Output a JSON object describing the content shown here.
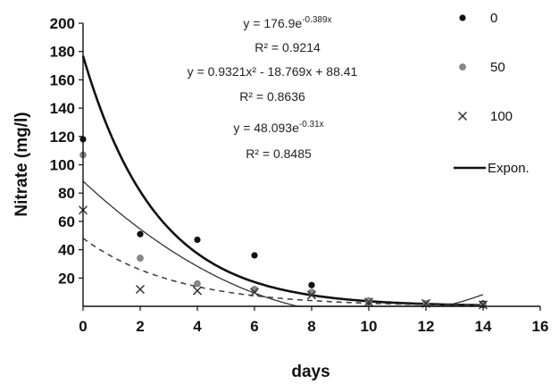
{
  "chart_data": {
    "type": "scatter",
    "title": "",
    "xlabel": "days",
    "ylabel": "Nitrate (mg/l)",
    "xlim": [
      0,
      16
    ],
    "ylim": [
      0,
      200
    ],
    "x_ticks": [
      0,
      2,
      4,
      6,
      8,
      10,
      12,
      14,
      16
    ],
    "y_ticks": [
      20,
      40,
      60,
      80,
      100,
      120,
      140,
      160,
      180,
      200
    ],
    "grid": false,
    "legend_position": "right",
    "series": [
      {
        "name": "0",
        "marker": "dot",
        "color": "#111111",
        "points": [
          [
            0,
            118
          ],
          [
            2,
            51
          ],
          [
            4,
            47
          ],
          [
            6,
            36
          ],
          [
            8,
            15
          ],
          [
            10,
            3
          ],
          [
            12,
            2
          ],
          [
            14,
            2
          ]
        ]
      },
      {
        "name": "50",
        "marker": "grey-dot",
        "color": "#8a8a8a",
        "points": [
          [
            0,
            107
          ],
          [
            2,
            34
          ],
          [
            4,
            16
          ],
          [
            6,
            12
          ],
          [
            8,
            10
          ],
          [
            10,
            4
          ],
          [
            12,
            2
          ],
          [
            14,
            1
          ]
        ]
      },
      {
        "name": "100",
        "marker": "x",
        "color": "#333333",
        "points": [
          [
            0,
            68
          ],
          [
            2,
            12
          ],
          [
            4,
            11
          ],
          [
            6,
            10
          ],
          [
            8,
            8
          ],
          [
            10,
            3
          ],
          [
            12,
            2
          ],
          [
            14,
            1
          ]
        ]
      }
    ],
    "trendlines": [
      {
        "kind": "exponential",
        "a": 176.9,
        "b": -0.389,
        "style": "thick-solid"
      },
      {
        "kind": "polynomial",
        "c2": 0.9321,
        "c1": -18.769,
        "c0": 88.41,
        "style": "thin-solid"
      },
      {
        "kind": "exponential",
        "a": 48.093,
        "b": -0.31,
        "style": "dashed"
      }
    ],
    "annotations": [
      {
        "text": "y = 176.9e",
        "sup": "-0.389x"
      },
      {
        "text": "R² = 0.9214"
      },
      {
        "text": "y = 0.9321x² - 18.769x + 88.41"
      },
      {
        "text": "R² = 0.8636"
      },
      {
        "text": "y = 48.093e",
        "sup": "-0.31x"
      },
      {
        "text": "R² = 0.8485"
      }
    ],
    "legend": [
      {
        "label": "0",
        "marker": "dot"
      },
      {
        "label": "50",
        "marker": "grey-dot"
      },
      {
        "label": "100",
        "marker": "x"
      },
      {
        "label": "Expon.",
        "marker": "line"
      }
    ]
  }
}
